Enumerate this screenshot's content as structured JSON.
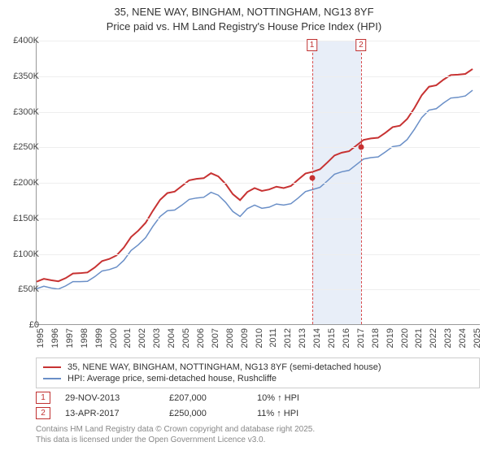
{
  "title": {
    "line1": "35, NENE WAY, BINGHAM, NOTTINGHAM, NG13 8YF",
    "line2": "Price paid vs. HM Land Registry's House Price Index (HPI)"
  },
  "chart": {
    "type": "line",
    "background_color": "#ffffff",
    "grid_color": "#eeeeee",
    "axis_color": "#999999",
    "ylabel_prefix": "£",
    "ylim": [
      0,
      400000
    ],
    "ytick_step": 50000,
    "yticks": [
      "£0",
      "£50K",
      "£100K",
      "£150K",
      "£200K",
      "£250K",
      "£300K",
      "£350K",
      "£400K"
    ],
    "xlim": [
      1995,
      2025.5
    ],
    "xticks": [
      1995,
      1996,
      1997,
      1998,
      1999,
      2000,
      2001,
      2002,
      2003,
      2004,
      2005,
      2006,
      2007,
      2008,
      2009,
      2010,
      2011,
      2012,
      2013,
      2014,
      2015,
      2016,
      2017,
      2018,
      2019,
      2020,
      2021,
      2022,
      2023,
      2024,
      2025
    ],
    "label_fontsize": 11,
    "series": [
      {
        "name": "35, NENE WAY, BINGHAM, NOTTINGHAM, NG13 8YF (semi-detached house)",
        "color": "#c73232",
        "line_width": 2,
        "values": [
          [
            1995,
            60000
          ],
          [
            1996,
            62000
          ],
          [
            1997,
            65000
          ],
          [
            1998,
            72000
          ],
          [
            1999,
            80000
          ],
          [
            2000,
            92000
          ],
          [
            2001,
            108000
          ],
          [
            2002,
            132000
          ],
          [
            2003,
            160000
          ],
          [
            2004,
            185000
          ],
          [
            2005,
            195000
          ],
          [
            2006,
            205000
          ],
          [
            2007,
            213000
          ],
          [
            2008,
            198000
          ],
          [
            2009,
            175000
          ],
          [
            2010,
            192000
          ],
          [
            2011,
            190000
          ],
          [
            2012,
            192000
          ],
          [
            2013,
            204000
          ],
          [
            2014,
            215000
          ],
          [
            2015,
            228000
          ],
          [
            2016,
            242000
          ],
          [
            2017,
            252000
          ],
          [
            2018,
            262000
          ],
          [
            2019,
            270000
          ],
          [
            2020,
            280000
          ],
          [
            2021,
            305000
          ],
          [
            2022,
            335000
          ],
          [
            2023,
            345000
          ],
          [
            2024,
            352000
          ],
          [
            2025,
            360000
          ]
        ]
      },
      {
        "name": "HPI: Average price, semi-detached house, Rushcliffe",
        "color": "#6a8fc7",
        "line_width": 1.5,
        "values": [
          [
            1995,
            50000
          ],
          [
            1996,
            51000
          ],
          [
            1997,
            54000
          ],
          [
            1998,
            60000
          ],
          [
            1999,
            67000
          ],
          [
            2000,
            77000
          ],
          [
            2001,
            90000
          ],
          [
            2002,
            112000
          ],
          [
            2003,
            138000
          ],
          [
            2004,
            160000
          ],
          [
            2005,
            168000
          ],
          [
            2006,
            178000
          ],
          [
            2007,
            186000
          ],
          [
            2008,
            172000
          ],
          [
            2009,
            152000
          ],
          [
            2010,
            168000
          ],
          [
            2011,
            165000
          ],
          [
            2012,
            168000
          ],
          [
            2013,
            178000
          ],
          [
            2014,
            190000
          ],
          [
            2015,
            202000
          ],
          [
            2016,
            215000
          ],
          [
            2017,
            225000
          ],
          [
            2018,
            235000
          ],
          [
            2019,
            243000
          ],
          [
            2020,
            252000
          ],
          [
            2021,
            275000
          ],
          [
            2022,
            302000
          ],
          [
            2023,
            312000
          ],
          [
            2024,
            320000
          ],
          [
            2025,
            330000
          ]
        ]
      }
    ],
    "shaded_band": {
      "from": 2013.91,
      "to": 2017.28,
      "color": "#e8eef8"
    },
    "sale_markers": [
      {
        "n": "1",
        "x": 2013.91,
        "y": 207000,
        "color": "#c73232"
      },
      {
        "n": "2",
        "x": 2017.28,
        "y": 250000,
        "color": "#c73232"
      }
    ]
  },
  "legend": {
    "border_color": "#cccccc",
    "items": [
      {
        "color": "#c73232",
        "label": "35, NENE WAY, BINGHAM, NOTTINGHAM, NG13 8YF (semi-detached house)"
      },
      {
        "color": "#6a8fc7",
        "label": "HPI: Average price, semi-detached house, Rushcliffe"
      }
    ]
  },
  "sales": [
    {
      "n": "1",
      "date": "29-NOV-2013",
      "price": "£207,000",
      "delta": "10% ↑ HPI"
    },
    {
      "n": "2",
      "date": "13-APR-2017",
      "price": "£250,000",
      "delta": "11% ↑ HPI"
    }
  ],
  "footer": {
    "line1": "Contains HM Land Registry data © Crown copyright and database right 2025.",
    "line2": "This data is licensed under the Open Government Licence v3.0."
  }
}
